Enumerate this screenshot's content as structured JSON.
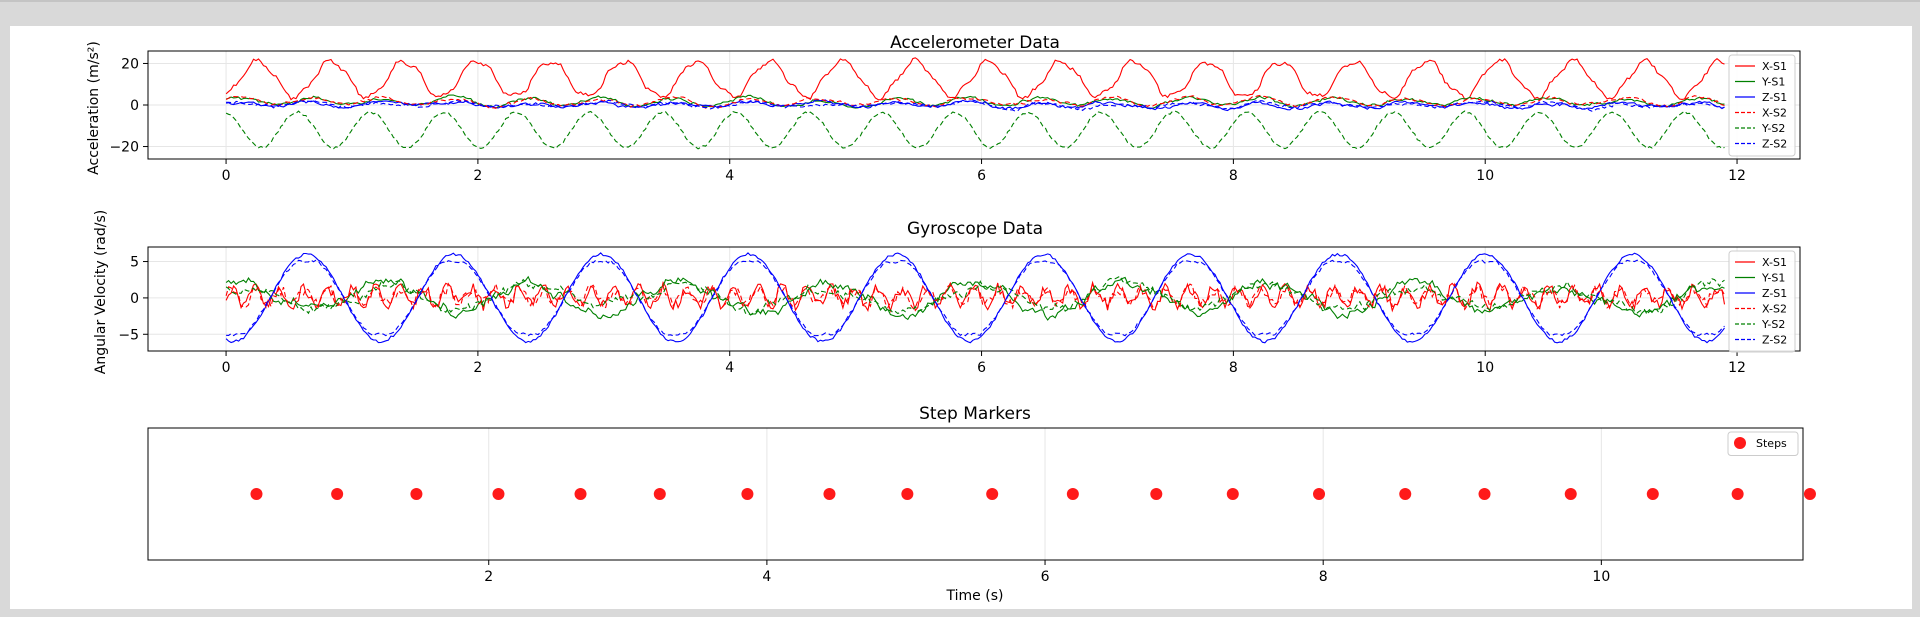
{
  "colors": {
    "x": "#ff0000",
    "y": "#008000",
    "z": "#0000ff",
    "marker": "#ff1a1a"
  },
  "charts": [
    {
      "id": "accel",
      "title": "Accelerometer Data",
      "ylabel": "Acceleration (m/s²)",
      "xlim": [
        -0.62,
        12.5
      ],
      "ylim": [
        -26,
        26
      ],
      "xticks": [
        0,
        2,
        4,
        6,
        8,
        10,
        12
      ],
      "yticks": [
        -20,
        0,
        20
      ],
      "legend": [
        "X-S1",
        "Y-S1",
        "Z-S1",
        "X-S2",
        "Y-S2",
        "Z-S2"
      ]
    },
    {
      "id": "gyro",
      "title": "Gyroscope Data",
      "ylabel": "Angular Velocity (rad/s)",
      "xlim": [
        -0.62,
        12.5
      ],
      "ylim": [
        -7.3,
        7.0
      ],
      "xticks": [
        0,
        2,
        4,
        6,
        8,
        10,
        12
      ],
      "yticks": [
        -5,
        0,
        5
      ],
      "legend": [
        "X-S1",
        "Y-S1",
        "Z-S1",
        "X-S2",
        "Y-S2",
        "Z-S2"
      ]
    },
    {
      "id": "steps",
      "title": "Step Markers",
      "xlabel": "Time (s)",
      "xlim": [
        -0.45,
        11.45
      ],
      "ylim": [
        0,
        1
      ],
      "xticks": [
        2,
        4,
        6,
        8,
        10
      ],
      "legend": [
        "Steps"
      ]
    }
  ],
  "chart_data": [
    {
      "type": "line",
      "title": "Accelerometer Data",
      "xlabel": "",
      "ylabel": "Acceleration (m/s²)",
      "xlim": [
        -0.62,
        12.5
      ],
      "ylim": [
        -26,
        26
      ],
      "time_range": [
        0,
        11.9
      ],
      "series": [
        {
          "name": "X-S1",
          "color": "#ff0000",
          "style": "solid",
          "mean": 12.5,
          "amplitude": 8.5,
          "period": 0.58
        },
        {
          "name": "Y-S1",
          "color": "#008000",
          "style": "solid",
          "mean": 1.5,
          "amplitude": 2.5,
          "period": 0.58
        },
        {
          "name": "Z-S1",
          "color": "#0000ff",
          "style": "solid",
          "mean": 0.0,
          "amplitude": 1.5,
          "period": 0.58
        },
        {
          "name": "X-S2",
          "color": "#ff0000",
          "style": "dashed",
          "mean": 1.5,
          "amplitude": 2.5,
          "period": 0.58
        },
        {
          "name": "Y-S2",
          "color": "#008000",
          "style": "dashed",
          "mean": -12.0,
          "amplitude": 9.5,
          "period": 0.58
        },
        {
          "name": "Z-S2",
          "color": "#0000ff",
          "style": "dashed",
          "mean": 0.0,
          "amplitude": 1.5,
          "period": 0.58
        }
      ]
    },
    {
      "type": "line",
      "title": "Gyroscope Data",
      "xlabel": "",
      "ylabel": "Angular Velocity (rad/s)",
      "xlim": [
        -0.62,
        12.5
      ],
      "ylim": [
        -7.3,
        7.0
      ],
      "time_range": [
        0,
        11.9
      ],
      "series": [
        {
          "name": "X-S1",
          "color": "#ff0000",
          "style": "solid",
          "mean": 0.2,
          "amplitude": 1.2,
          "period": 0.35
        },
        {
          "name": "Y-S1",
          "color": "#008000",
          "style": "solid",
          "mean": 0.0,
          "amplitude": 2.0,
          "period": 1.17
        },
        {
          "name": "Z-S1",
          "color": "#0000ff",
          "style": "solid",
          "mean": 0.0,
          "amplitude": 6.0,
          "period": 1.17
        },
        {
          "name": "X-S2",
          "color": "#ff0000",
          "style": "dashed",
          "mean": 0.2,
          "amplitude": 1.0,
          "period": 0.35
        },
        {
          "name": "Y-S2",
          "color": "#008000",
          "style": "dashed",
          "mean": 0.0,
          "amplitude": 1.6,
          "period": 1.17
        },
        {
          "name": "Z-S2",
          "color": "#0000ff",
          "style": "dashed",
          "mean": 0.0,
          "amplitude": 5.0,
          "period": 1.17
        }
      ]
    },
    {
      "type": "scatter",
      "title": "Step Markers",
      "xlabel": "Time (s)",
      "ylabel": "",
      "xlim": [
        -0.45,
        11.45
      ],
      "ylim": [
        0,
        1
      ],
      "series": [
        {
          "name": "Steps",
          "color": "#ff1a1a",
          "x": [
            0.33,
            0.91,
            1.48,
            2.07,
            2.66,
            3.23,
            3.86,
            4.45,
            5.01,
            5.62,
            6.2,
            6.8,
            7.35,
            7.97,
            8.59,
            9.16,
            9.78,
            10.37,
            10.98,
            11.5
          ],
          "y": [
            0.5,
            0.5,
            0.5,
            0.5,
            0.5,
            0.5,
            0.5,
            0.5,
            0.5,
            0.5,
            0.5,
            0.5,
            0.5,
            0.5,
            0.5,
            0.5,
            0.5,
            0.5,
            0.5,
            0.5
          ]
        }
      ]
    }
  ]
}
